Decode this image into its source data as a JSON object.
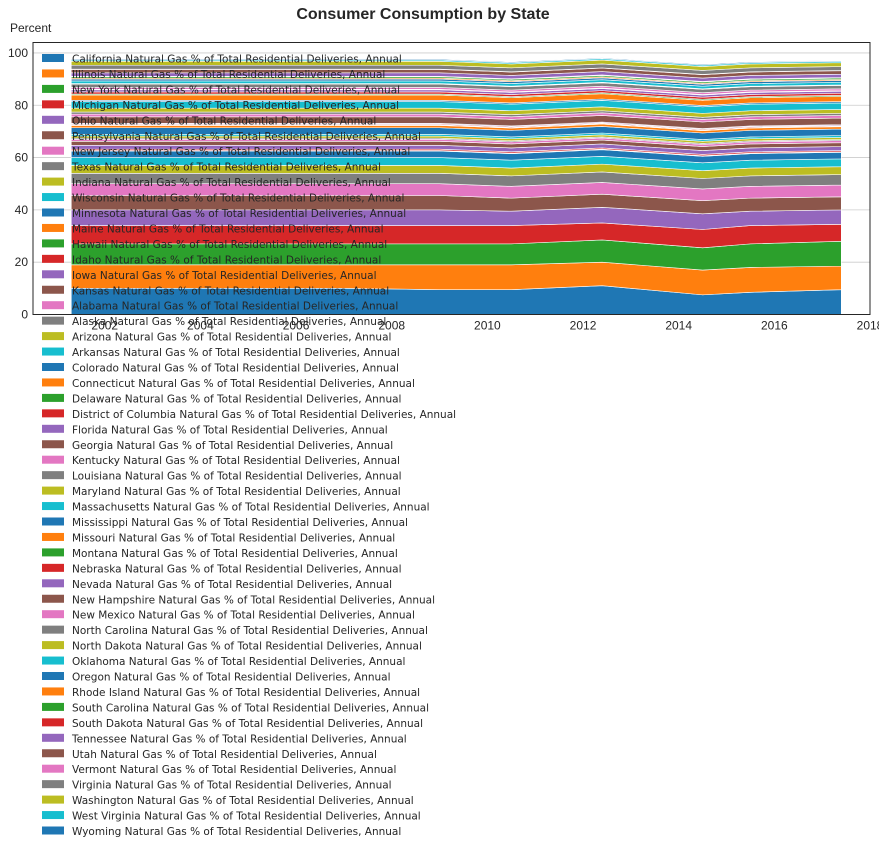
{
  "chart_data": {
    "type": "area",
    "stacked": true,
    "title": "Consumer Consumption by State",
    "ylabel": "Percent",
    "xlabel": "",
    "xlim": [
      2000.5,
      2018
    ],
    "ylim": [
      0,
      104
    ],
    "xticks": [
      2002,
      2004,
      2006,
      2008,
      2010,
      2012,
      2014,
      2016,
      2018
    ],
    "yticks": [
      0,
      20,
      40,
      60,
      80,
      100
    ],
    "grid": "y",
    "legend_placement": "upper-left",
    "x": [
      2001.3,
      2004,
      2007,
      2009,
      2010.5,
      2012.4,
      2014.5,
      2015.5,
      2017.4
    ],
    "palette": [
      "#1f77b4",
      "#ff7f0e",
      "#2ca02c",
      "#d62728",
      "#9467bd",
      "#8c564b",
      "#e377c2",
      "#7f7f7f",
      "#bcbd22",
      "#17becf"
    ],
    "series": [
      {
        "name": "California Natural Gas % of Total Residential Deliveries, Annual",
        "values": [
          10,
          10,
          10,
          9.5,
          9.5,
          11,
          7.5,
          8.5,
          9.5
        ]
      },
      {
        "name": "Illinois Natural Gas % of Total Residential Deliveries, Annual",
        "values": [
          9,
          9,
          9,
          9.5,
          9.5,
          9,
          9.5,
          9.5,
          9
        ]
      },
      {
        "name": "New York Natural Gas % of Total Residential Deliveries, Annual",
        "values": [
          8,
          8,
          8,
          8,
          8,
          8.5,
          8.5,
          9,
          9.5
        ]
      },
      {
        "name": "Michigan Natural Gas % of Total Residential Deliveries, Annual",
        "values": [
          7,
          7,
          7,
          7,
          7,
          6.5,
          7,
          7,
          6.5
        ]
      },
      {
        "name": "Ohio Natural Gas % of Total Residential Deliveries, Annual",
        "values": [
          6,
          6,
          6,
          6,
          5.5,
          6,
          6,
          5.5,
          5.5
        ]
      },
      {
        "name": "Pennsylvania Natural Gas % of Total Residential Deliveries, Annual",
        "values": [
          5.5,
          5.5,
          5.5,
          5.5,
          5,
          5,
          5,
          5,
          5
        ]
      },
      {
        "name": "New Jersey Natural Gas % of Total Residential Deliveries, Annual",
        "values": [
          4.5,
          4.5,
          4.5,
          4.5,
          4.5,
          4.5,
          4.5,
          4.5,
          4.5
        ]
      },
      {
        "name": "Texas Natural Gas % of Total Residential Deliveries, Annual",
        "values": [
          4,
          4,
          4,
          4,
          4,
          4,
          4,
          4,
          4
        ]
      },
      {
        "name": "Indiana Natural Gas % of Total Residential Deliveries, Annual",
        "values": [
          3,
          3,
          3,
          3,
          3,
          3,
          3,
          3,
          3
        ]
      },
      {
        "name": "Wisconsin Natural Gas % of Total Residential Deliveries, Annual",
        "values": [
          3,
          3,
          3,
          3,
          3,
          3,
          3,
          3,
          3
        ]
      },
      {
        "name": "Minnesota Natural Gas % of Total Residential Deliveries, Annual",
        "values": [
          2.5,
          2.5,
          2.5,
          2.5,
          2.5,
          2.5,
          2.5,
          2.5,
          2.5
        ]
      },
      {
        "name": "Maine Natural Gas % of Total Residential Deliveries, Annual",
        "values": [
          0.1,
          0.1,
          0.1,
          0.1,
          0.1,
          0.1,
          0.1,
          0.1,
          0.1
        ]
      },
      {
        "name": "Hawaii Natural Gas % of Total Residential Deliveries, Annual",
        "values": [
          0.1,
          0.1,
          0.1,
          0.1,
          0.1,
          0.1,
          0.1,
          0.1,
          0.1
        ]
      },
      {
        "name": "Idaho Natural Gas % of Total Residential Deliveries, Annual",
        "values": [
          0.5,
          0.5,
          0.5,
          0.5,
          0.5,
          0.5,
          0.5,
          0.5,
          0.5
        ]
      },
      {
        "name": "Iowa Natural Gas % of Total Residential Deliveries, Annual",
        "values": [
          1.5,
          1.5,
          1.5,
          1.5,
          1.5,
          1.5,
          1.5,
          1.5,
          1.5
        ]
      },
      {
        "name": "Kansas Natural Gas % of Total Residential Deliveries, Annual",
        "values": [
          1.5,
          1.5,
          1.5,
          1.5,
          1.5,
          1.5,
          1.5,
          1.5,
          1.5
        ]
      },
      {
        "name": "Alabama Natural Gas % of Total Residential Deliveries, Annual",
        "values": [
          0.8,
          0.8,
          0.8,
          0.8,
          0.8,
          0.8,
          0.8,
          0.8,
          0.8
        ]
      },
      {
        "name": "Alaska Natural Gas % of Total Residential Deliveries, Annual",
        "values": [
          0.4,
          0.4,
          0.4,
          0.4,
          0.4,
          0.4,
          0.4,
          0.4,
          0.4
        ]
      },
      {
        "name": "Arizona Natural Gas % of Total Residential Deliveries, Annual",
        "values": [
          0.8,
          0.8,
          0.8,
          0.8,
          0.8,
          0.8,
          0.8,
          0.8,
          0.8
        ]
      },
      {
        "name": "Arkansas Natural Gas % of Total Residential Deliveries, Annual",
        "values": [
          0.7,
          0.7,
          0.7,
          0.7,
          0.7,
          0.7,
          0.7,
          0.7,
          0.7
        ]
      },
      {
        "name": "Colorado Natural Gas % of Total Residential Deliveries, Annual",
        "values": [
          2.5,
          2.5,
          2.5,
          2.5,
          2.5,
          2.5,
          2.5,
          2.5,
          2.5
        ]
      },
      {
        "name": "Connecticut Natural Gas % of Total Residential Deliveries, Annual",
        "values": [
          0.9,
          0.9,
          0.9,
          0.9,
          0.9,
          0.9,
          0.9,
          0.9,
          0.9
        ]
      },
      {
        "name": "Delaware Natural Gas % of Total Residential Deliveries, Annual",
        "values": [
          0.2,
          0.2,
          0.2,
          0.2,
          0.2,
          0.2,
          0.2,
          0.2,
          0.2
        ]
      },
      {
        "name": "District of Columbia Natural Gas % of Total Residential Deliveries, Annual",
        "values": [
          0.3,
          0.3,
          0.3,
          0.3,
          0.3,
          0.3,
          0.3,
          0.3,
          0.3
        ]
      },
      {
        "name": "Florida Natural Gas % of Total Residential Deliveries, Annual",
        "values": [
          0.3,
          0.3,
          0.3,
          0.3,
          0.3,
          0.3,
          0.3,
          0.3,
          0.3
        ]
      },
      {
        "name": "Georgia Natural Gas % of Total Residential Deliveries, Annual",
        "values": [
          2.5,
          2.5,
          2.5,
          2.5,
          2.5,
          2.5,
          2.5,
          2.5,
          2.5
        ]
      },
      {
        "name": "Kentucky Natural Gas % of Total Residential Deliveries, Annual",
        "values": [
          1,
          1,
          1,
          1,
          1,
          1,
          1,
          1,
          1
        ]
      },
      {
        "name": "Louisiana Natural Gas % of Total Residential Deliveries, Annual",
        "values": [
          0.8,
          0.8,
          0.8,
          0.8,
          0.8,
          0.8,
          0.8,
          0.8,
          0.8
        ]
      },
      {
        "name": "Maryland Natural Gas % of Total Residential Deliveries, Annual",
        "values": [
          1.5,
          1.5,
          1.5,
          1.5,
          1.5,
          1.5,
          1.5,
          1.5,
          1.5
        ]
      },
      {
        "name": "Massachusetts Natural Gas % of Total Residential Deliveries, Annual",
        "values": [
          2.5,
          2.5,
          2.5,
          2.5,
          2.5,
          2.5,
          2.5,
          2.5,
          2.5
        ]
      },
      {
        "name": "Mississippi Natural Gas % of Total Residential Deliveries, Annual",
        "values": [
          0.5,
          0.5,
          0.5,
          0.5,
          0.5,
          0.5,
          0.5,
          0.5,
          0.5
        ]
      },
      {
        "name": "Missouri Natural Gas % of Total Residential Deliveries, Annual",
        "values": [
          2,
          2,
          2,
          2,
          2,
          2,
          2,
          2,
          2
        ]
      },
      {
        "name": "Montana Natural Gas % of Total Residential Deliveries, Annual",
        "values": [
          0.4,
          0.4,
          0.4,
          0.4,
          0.4,
          0.4,
          0.4,
          0.4,
          0.4
        ]
      },
      {
        "name": "Nebraska Natural Gas % of Total Residential Deliveries, Annual",
        "values": [
          0.8,
          0.8,
          0.8,
          0.8,
          0.8,
          0.8,
          0.8,
          0.8,
          0.8
        ]
      },
      {
        "name": "Nevada Natural Gas % of Total Residential Deliveries, Annual",
        "values": [
          0.8,
          0.8,
          0.8,
          0.8,
          0.8,
          0.8,
          0.8,
          0.8,
          0.8
        ]
      },
      {
        "name": "New Hampshire Natural Gas % of Total Residential Deliveries, Annual",
        "values": [
          0.2,
          0.2,
          0.2,
          0.2,
          0.2,
          0.2,
          0.2,
          0.2,
          0.2
        ]
      },
      {
        "name": "New Mexico Natural Gas % of Total Residential Deliveries, Annual",
        "values": [
          0.7,
          0.7,
          0.7,
          0.7,
          0.7,
          0.7,
          0.7,
          0.7,
          0.7
        ]
      },
      {
        "name": "North Carolina Natural Gas % of Total Residential Deliveries, Annual",
        "values": [
          1.3,
          1.3,
          1.3,
          1.3,
          1.3,
          1.3,
          1.3,
          1.3,
          1.3
        ]
      },
      {
        "name": "North Dakota Natural Gas % of Total Residential Deliveries, Annual",
        "values": [
          0.2,
          0.2,
          0.2,
          0.2,
          0.2,
          0.2,
          0.2,
          0.2,
          0.2
        ]
      },
      {
        "name": "Oklahoma Natural Gas % of Total Residential Deliveries, Annual",
        "values": [
          1,
          1,
          1,
          1,
          1,
          1,
          1,
          1,
          1
        ]
      },
      {
        "name": "Oregon Natural Gas % of Total Residential Deliveries, Annual",
        "values": [
          0.7,
          0.7,
          0.7,
          0.7,
          0.7,
          0.7,
          0.7,
          0.7,
          0.7
        ]
      },
      {
        "name": "Rhode Island Natural Gas % of Total Residential Deliveries, Annual",
        "values": [
          0.4,
          0.4,
          0.4,
          0.4,
          0.4,
          0.4,
          0.4,
          0.4,
          0.4
        ]
      },
      {
        "name": "South Carolina Natural Gas % of Total Residential Deliveries, Annual",
        "values": [
          0.5,
          0.5,
          0.5,
          0.5,
          0.5,
          0.5,
          0.5,
          0.5,
          0.5
        ]
      },
      {
        "name": "South Dakota Natural Gas % of Total Residential Deliveries, Annual",
        "values": [
          0.2,
          0.2,
          0.2,
          0.2,
          0.2,
          0.2,
          0.2,
          0.2,
          0.2
        ]
      },
      {
        "name": "Tennessee Natural Gas % of Total Residential Deliveries, Annual",
        "values": [
          1.3,
          1.3,
          1.3,
          1.3,
          1.3,
          1.3,
          1.3,
          1.3,
          1.3
        ]
      },
      {
        "name": "Utah Natural Gas % of Total Residential Deliveries, Annual",
        "values": [
          1.3,
          1.3,
          1.3,
          1.3,
          1.3,
          1.3,
          1.3,
          1.3,
          1.3
        ]
      },
      {
        "name": "Vermont Natural Gas % of Total Residential Deliveries, Annual",
        "values": [
          0.1,
          0.1,
          0.1,
          0.1,
          0.1,
          0.1,
          0.1,
          0.1,
          0.1
        ]
      },
      {
        "name": "Virginia Natural Gas % of Total Residential Deliveries, Annual",
        "values": [
          1.5,
          1.5,
          1.5,
          1.5,
          1.5,
          1.5,
          1.5,
          1.5,
          1.5
        ]
      },
      {
        "name": "Washington Natural Gas % of Total Residential Deliveries, Annual",
        "values": [
          1.5,
          1.5,
          1.5,
          1.5,
          1.5,
          1.5,
          1.5,
          1.5,
          1.5
        ]
      },
      {
        "name": "West Virginia Natural Gas % of Total Residential Deliveries, Annual",
        "values": [
          0.5,
          0.5,
          0.5,
          0.5,
          0.5,
          0.5,
          0.5,
          0.5,
          0.5
        ]
      },
      {
        "name": "Wyoming Natural Gas % of Total Residential Deliveries, Annual",
        "values": [
          0.3,
          0.3,
          0.3,
          0.3,
          0.3,
          0.3,
          0.3,
          0.3,
          0.3
        ]
      }
    ]
  }
}
